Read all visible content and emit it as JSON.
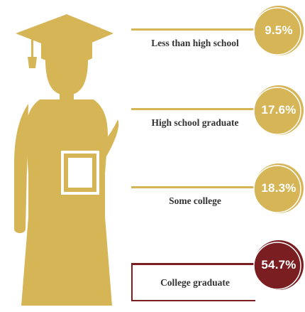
{
  "chart_data": {
    "type": "bar",
    "categories": [
      "Less than high school",
      "High school graduate",
      "Some college",
      "College graduate"
    ],
    "values": [
      9.5,
      17.6,
      18.3,
      54.7
    ],
    "value_labels": [
      "9.5%",
      "17.6%",
      "18.3%",
      "54.7%"
    ],
    "unit": "%",
    "title": "",
    "xlabel": "",
    "ylabel": "",
    "colors": {
      "default": "#d6b556",
      "highlight": "#7a1e22",
      "icon": "#d6b556",
      "text": "#333333"
    },
    "highlight_index": 3
  }
}
